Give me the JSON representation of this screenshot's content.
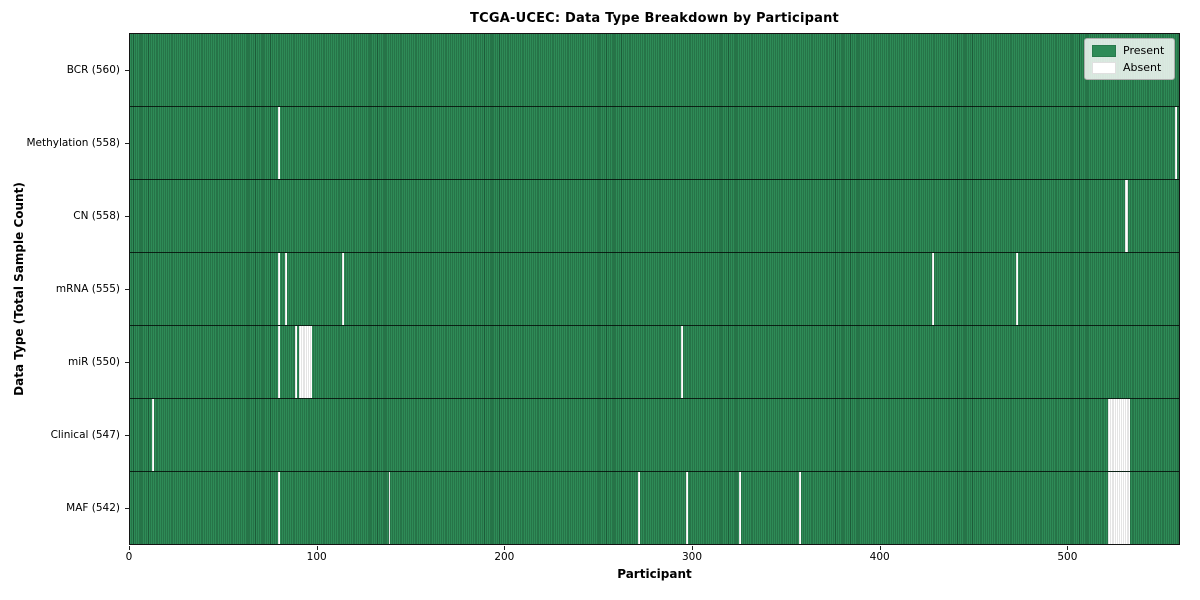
{
  "chart_data": {
    "type": "heatmap",
    "title": "TCGA-UCEC: Data Type Breakdown by Participant",
    "xlabel": "Participant",
    "ylabel": "Data Type (Total Sample Count)",
    "x_range": [
      0,
      560
    ],
    "x_ticks": [
      0,
      100,
      200,
      300,
      400,
      500
    ],
    "n_participants": 560,
    "grid": false,
    "legend_position": "upper right",
    "colors": {
      "present": "#2e8b57",
      "absent": "#ffffff",
      "cell_edge": "#1d5c39"
    },
    "legend": [
      {
        "label": "Present",
        "color": "#2e8b57"
      },
      {
        "label": "Absent",
        "color": "#ffffff"
      }
    ],
    "rows": [
      {
        "label": "BCR (560)",
        "present_count": 560,
        "absent_participants": []
      },
      {
        "label": "Methylation (558)",
        "present_count": 558,
        "absent_participants": [
          80,
          559
        ]
      },
      {
        "label": "CN (558)",
        "present_count": 558,
        "absent_participants": [
          532,
          533
        ]
      },
      {
        "label": "mRNA (555)",
        "present_count": 555,
        "absent_participants": [
          80,
          84,
          114,
          429,
          474
        ]
      },
      {
        "label": "miR (550)",
        "present_count": 550,
        "absent_participants": [
          80,
          89,
          91,
          92,
          93,
          94,
          95,
          96,
          97,
          295
        ]
      },
      {
        "label": "Clinical (547)",
        "present_count": 547,
        "absent_participants": [
          13,
          523,
          524,
          525,
          526,
          527,
          528,
          529,
          530,
          531,
          532,
          533,
          534
        ]
      },
      {
        "label": "MAF (542)",
        "present_count": 542,
        "absent_participants": [
          80,
          139,
          272,
          298,
          326,
          358,
          523,
          524,
          525,
          526,
          527,
          528,
          529,
          530,
          531,
          532,
          533,
          534
        ]
      }
    ]
  }
}
